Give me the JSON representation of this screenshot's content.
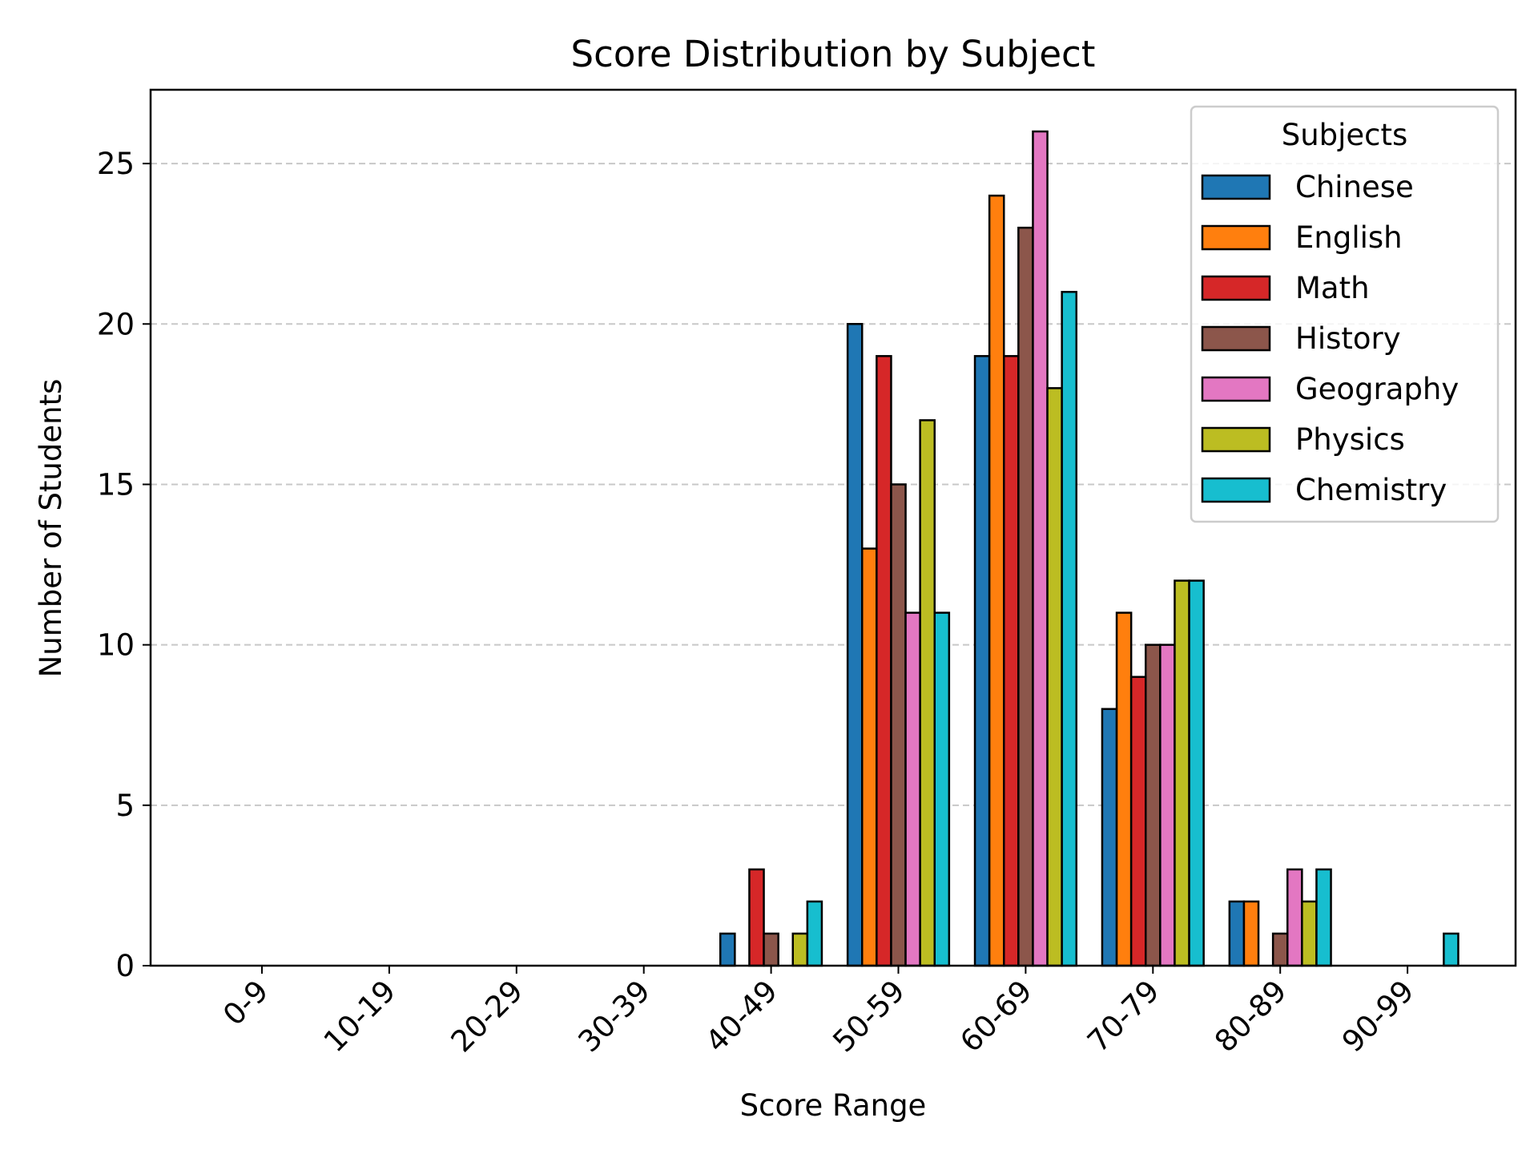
{
  "chart_data": {
    "type": "bar",
    "title": "Score Distribution by Subject",
    "xlabel": "Score Range",
    "ylabel": "Number of Students",
    "categories": [
      "0-9",
      "10-19",
      "20-29",
      "30-39",
      "40-49",
      "50-59",
      "60-69",
      "70-79",
      "80-89",
      "90-99"
    ],
    "ylim": [
      0,
      27.3
    ],
    "yticks": [
      0,
      5,
      10,
      15,
      20,
      25
    ],
    "grid": "y-dashed",
    "legend": {
      "title": "Subjects",
      "placement": "top-right"
    },
    "series": [
      {
        "name": "Chinese",
        "color": "#1f77b4",
        "values": [
          0,
          0,
          0,
          0,
          1,
          20,
          19,
          8,
          2,
          0
        ]
      },
      {
        "name": "English",
        "color": "#ff7f0e",
        "values": [
          0,
          0,
          0,
          0,
          0,
          13,
          24,
          11,
          2,
          0
        ]
      },
      {
        "name": "Math",
        "color": "#d62728",
        "values": [
          0,
          0,
          0,
          0,
          3,
          19,
          19,
          9,
          0,
          0
        ]
      },
      {
        "name": "History",
        "color": "#8c564b",
        "values": [
          0,
          0,
          0,
          0,
          1,
          15,
          23,
          10,
          1,
          0
        ]
      },
      {
        "name": "Geography",
        "color": "#e377c2",
        "values": [
          0,
          0,
          0,
          0,
          0,
          11,
          26,
          10,
          3,
          0
        ]
      },
      {
        "name": "Physics",
        "color": "#bcbd22",
        "values": [
          0,
          0,
          0,
          0,
          1,
          17,
          18,
          12,
          2,
          0
        ]
      },
      {
        "name": "Chemistry",
        "color": "#17becf",
        "values": [
          0,
          0,
          0,
          0,
          2,
          11,
          21,
          12,
          3,
          1
        ]
      }
    ]
  }
}
